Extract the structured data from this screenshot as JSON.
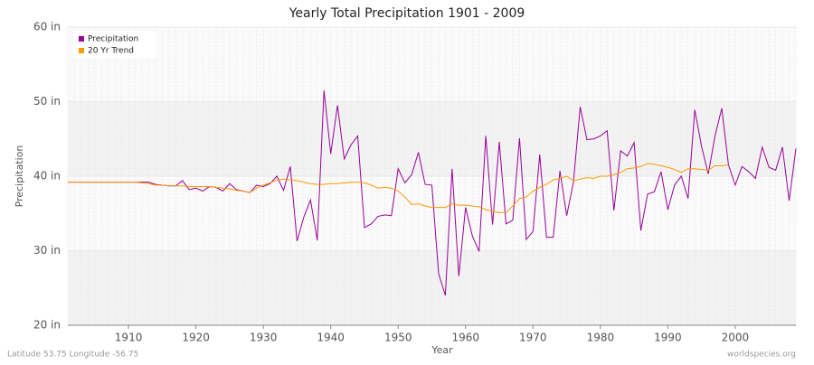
{
  "chart_data": {
    "type": "line",
    "title": "Yearly Total Precipitation 1901 - 2009",
    "x_label": "Year",
    "y_label": "Precipitation",
    "footer_left": "Latitude 53.75 Longitude -56.75",
    "footer_right": "worldspecies.org",
    "legend": "top-left",
    "grid": true,
    "xlim": [
      1901,
      2009
    ],
    "xticks": [
      1910,
      1920,
      1930,
      1940,
      1950,
      1960,
      1970,
      1980,
      1990,
      2000
    ],
    "ylim": [
      20,
      60
    ],
    "yticks": [
      {
        "value": 20,
        "label": "20 in"
      },
      {
        "value": 30,
        "label": "30 in"
      },
      {
        "value": 40,
        "label": "40 in"
      },
      {
        "value": 50,
        "label": "50 in"
      },
      {
        "value": 60,
        "label": "60 in"
      }
    ],
    "x": [
      1901,
      1902,
      1903,
      1904,
      1905,
      1906,
      1907,
      1908,
      1909,
      1910,
      1911,
      1912,
      1913,
      1914,
      1915,
      1916,
      1917,
      1918,
      1919,
      1920,
      1921,
      1922,
      1923,
      1924,
      1925,
      1926,
      1927,
      1928,
      1929,
      1930,
      1931,
      1932,
      1933,
      1934,
      1935,
      1936,
      1937,
      1938,
      1939,
      1940,
      1941,
      1942,
      1943,
      1944,
      1945,
      1946,
      1947,
      1948,
      1949,
      1950,
      1951,
      1952,
      1953,
      1954,
      1955,
      1956,
      1957,
      1958,
      1959,
      1960,
      1961,
      1962,
      1963,
      1964,
      1965,
      1966,
      1967,
      1968,
      1969,
      1970,
      1971,
      1972,
      1973,
      1974,
      1975,
      1976,
      1977,
      1978,
      1979,
      1980,
      1981,
      1982,
      1983,
      1984,
      1985,
      1986,
      1987,
      1988,
      1989,
      1990,
      1991,
      1992,
      1993,
      1994,
      1995,
      1996,
      1997,
      1998,
      1999,
      2000,
      2001,
      2002,
      2003,
      2004,
      2005,
      2006,
      2007,
      2008,
      2009
    ],
    "series": [
      {
        "name": "Precipitation",
        "color": "#990099",
        "values": [
          39.2,
          39.2,
          39.2,
          39.2,
          39.2,
          39.2,
          39.2,
          39.2,
          39.2,
          39.2,
          39.2,
          39.2,
          39.2,
          38.9,
          38.8,
          38.7,
          38.7,
          39.4,
          38.2,
          38.4,
          38.0,
          38.6,
          38.5,
          38.0,
          39.0,
          38.2,
          38.0,
          37.8,
          38.8,
          38.6,
          39.0,
          40.0,
          38.1,
          41.3,
          31.3,
          34.5,
          36.8,
          31.4,
          51.5,
          43.0,
          49.5,
          42.3,
          44.2,
          45.4,
          33.1,
          33.6,
          34.6,
          34.8,
          34.7,
          41.0,
          39.1,
          40.2,
          43.2,
          38.9,
          38.8,
          26.9,
          24.0,
          41.0,
          26.6,
          35.8,
          32.0,
          29.9,
          45.4,
          33.5,
          44.6,
          33.6,
          34.1,
          45.1,
          31.5,
          32.6,
          42.9,
          31.8,
          31.8,
          40.7,
          34.7,
          39.2,
          49.3,
          44.9,
          45.0,
          45.4,
          46.1,
          35.4,
          43.4,
          42.7,
          44.5,
          32.7,
          37.6,
          37.9,
          40.6,
          35.5,
          38.8,
          40.0,
          37.0,
          48.9,
          44.0,
          40.3,
          45.4,
          49.1,
          41.5,
          38.8,
          41.3,
          40.6,
          39.7,
          43.9,
          41.2,
          40.8,
          43.9,
          36.7,
          43.7
        ]
      },
      {
        "name": "20 Yr Trend",
        "color": "#ff9900",
        "values": [
          39.2,
          39.2,
          39.2,
          39.2,
          39.2,
          39.2,
          39.2,
          39.2,
          39.2,
          39.2,
          39.2,
          39.1,
          39.0,
          38.8,
          38.8,
          38.7,
          38.7,
          38.7,
          38.6,
          38.6,
          38.6,
          38.6,
          38.5,
          38.4,
          38.3,
          38.1,
          38.0,
          37.8,
          38.4,
          38.8,
          39.1,
          39.5,
          39.6,
          39.5,
          39.4,
          39.2,
          39.0,
          38.9,
          38.9,
          39.0,
          39.0,
          39.1,
          39.2,
          39.2,
          39.1,
          38.8,
          38.4,
          38.5,
          38.4,
          38.0,
          37.2,
          36.2,
          36.3,
          36.0,
          35.8,
          35.8,
          35.8,
          36.3,
          36.1,
          36.1,
          36.0,
          35.9,
          35.5,
          35.3,
          35.1,
          35.1,
          36.0,
          37.0,
          37.2,
          38.0,
          38.5,
          38.9,
          39.5,
          39.7,
          40.0,
          39.4,
          39.6,
          39.8,
          39.7,
          40.0,
          40.0,
          40.2,
          40.5,
          41.0,
          41.1,
          41.3,
          41.7,
          41.6,
          41.4,
          41.2,
          40.9,
          40.5,
          41.0,
          41.0,
          40.9,
          40.8,
          41.4,
          41.4,
          41.5,
          null,
          null,
          null,
          null,
          null,
          null,
          null,
          null,
          null,
          null
        ]
      }
    ]
  }
}
